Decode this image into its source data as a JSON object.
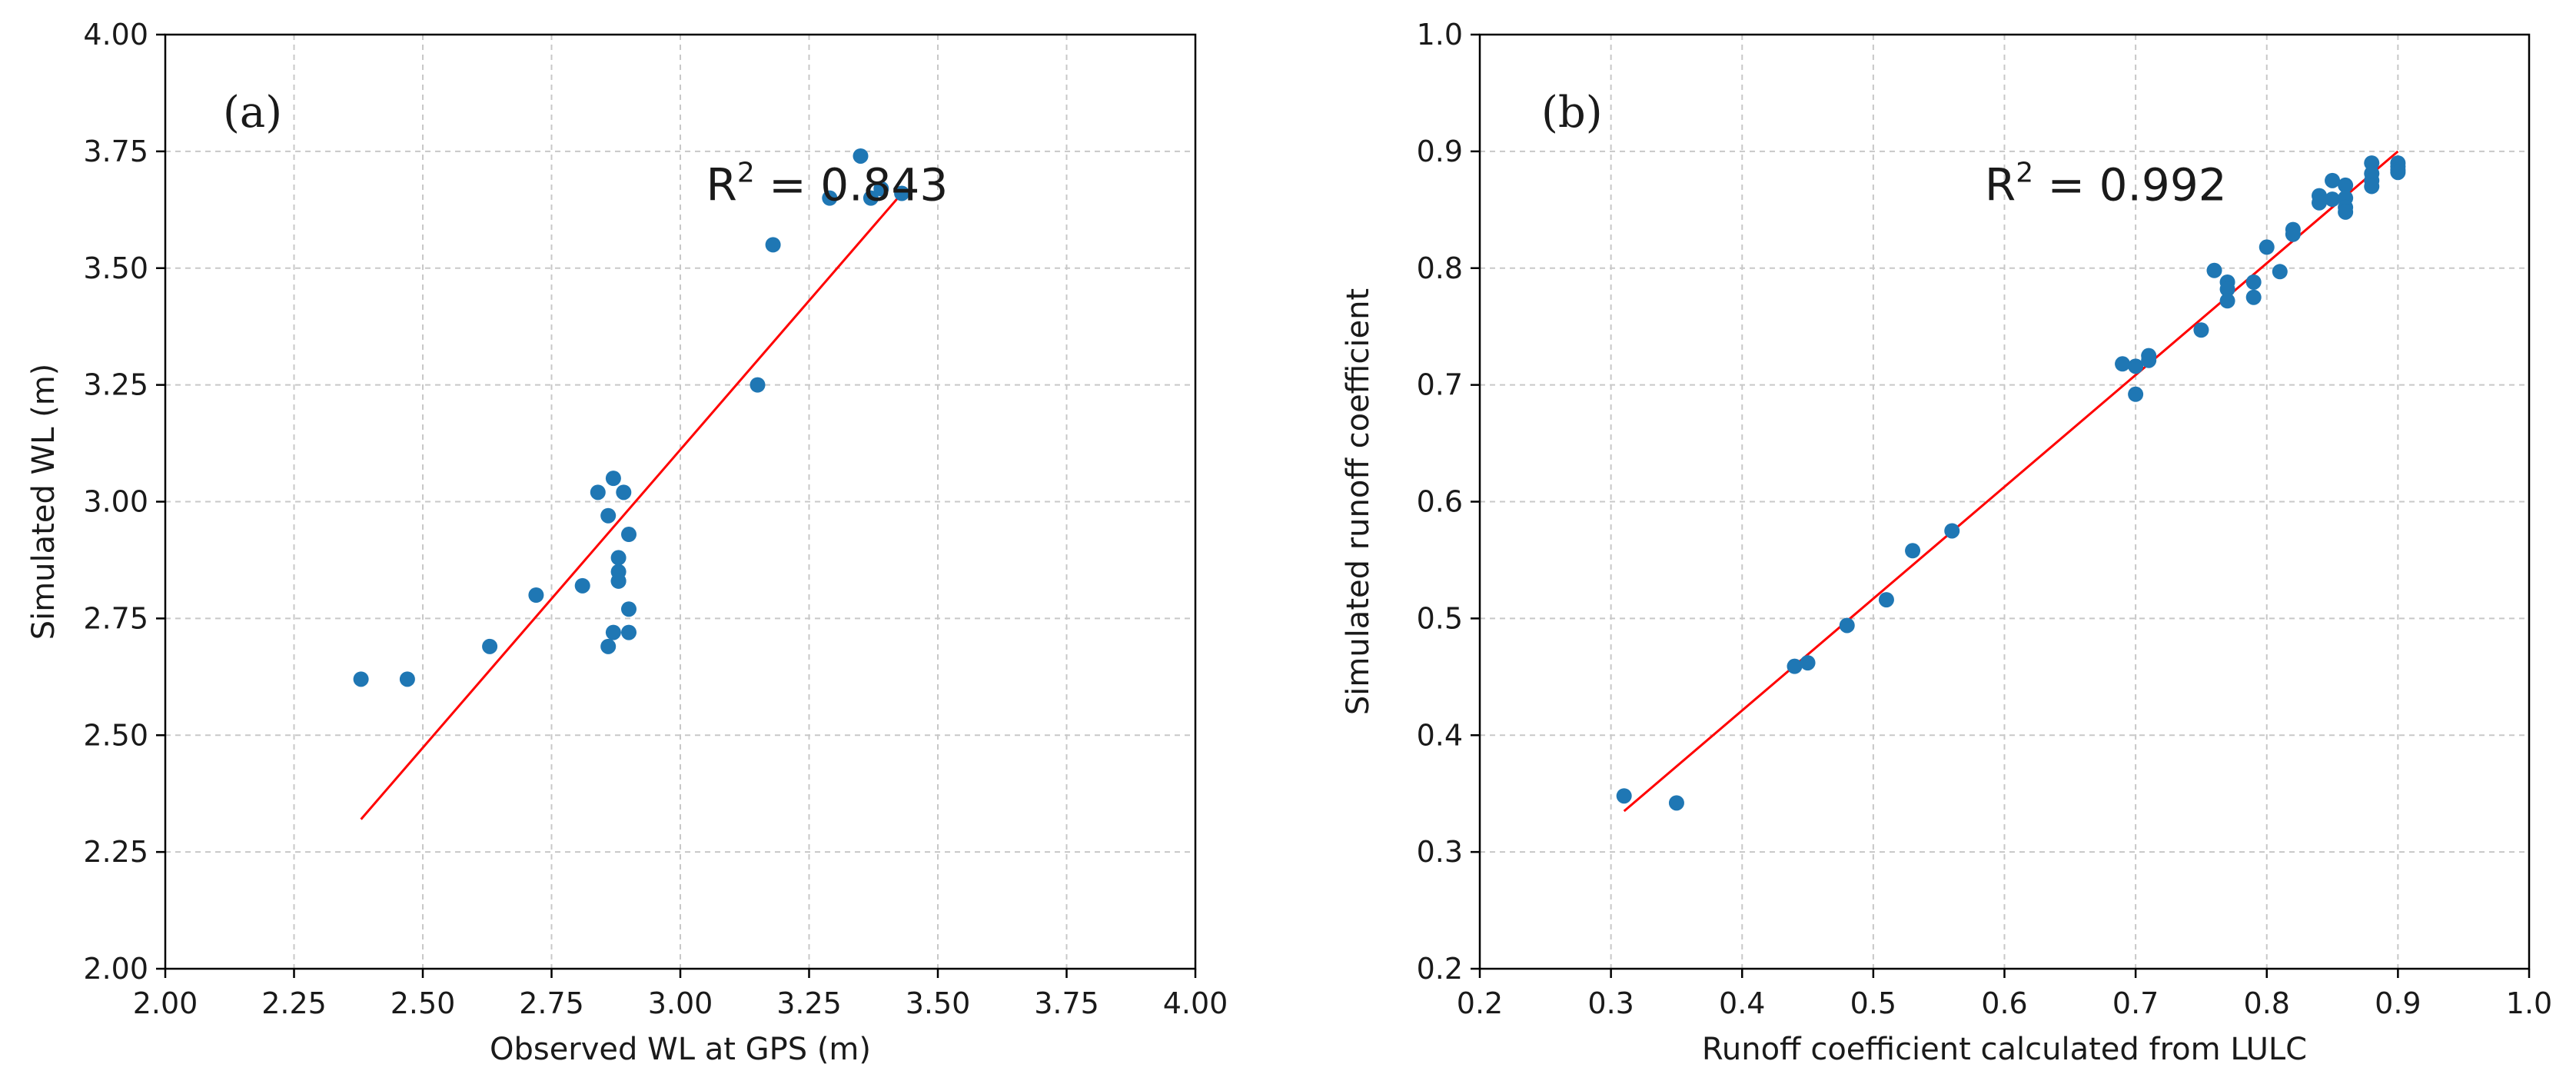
{
  "chart_data": [
    {
      "type": "scatter",
      "panel_label": "(a)",
      "xlabel": "Observed WL at GPS (m)",
      "ylabel": "Simulated WL (m)",
      "xlim": [
        2.0,
        4.0
      ],
      "ylim": [
        2.0,
        4.0
      ],
      "xticks": [
        2.0,
        2.25,
        2.5,
        2.75,
        3.0,
        3.25,
        3.5,
        3.75,
        4.0
      ],
      "yticks": [
        2.0,
        2.25,
        2.5,
        2.75,
        3.0,
        3.25,
        3.5,
        3.75,
        4.0
      ],
      "xtick_labels": [
        "2.00",
        "2.25",
        "2.50",
        "2.75",
        "3.00",
        "3.25",
        "3.50",
        "3.75",
        "4.00"
      ],
      "ytick_labels": [
        "2.00",
        "2.25",
        "2.50",
        "2.75",
        "3.00",
        "3.25",
        "3.50",
        "3.75",
        "4.00"
      ],
      "grid": true,
      "annotation": {
        "prefix": "R",
        "sup": "2",
        "suffix": " = 0.843",
        "x": 3.05,
        "y": 3.645
      },
      "point_color": "#1f77b4",
      "fit_color": "#ff0000",
      "fit_line": {
        "x": [
          2.38,
          3.43
        ],
        "y": [
          2.32,
          3.66
        ]
      },
      "x": [
        2.38,
        2.47,
        2.63,
        2.72,
        2.81,
        2.84,
        2.86,
        2.86,
        2.87,
        2.87,
        2.88,
        2.88,
        2.88,
        2.88,
        2.89,
        2.9,
        2.9,
        2.9,
        3.15,
        3.18,
        3.29,
        3.35,
        3.37,
        3.39,
        3.43
      ],
      "y": [
        2.62,
        2.62,
        2.69,
        2.8,
        2.82,
        3.02,
        2.97,
        2.69,
        2.72,
        3.05,
        2.83,
        2.85,
        2.88,
        2.83,
        3.02,
        2.93,
        2.77,
        2.72,
        3.25,
        3.55,
        3.65,
        3.74,
        3.65,
        3.67,
        3.66
      ]
    },
    {
      "type": "scatter",
      "panel_label": "(b)",
      "xlabel": "Runoff coefficient calculated from LULC",
      "ylabel": "Simulated runoff coefficient",
      "xlim": [
        0.2,
        1.0
      ],
      "ylim": [
        0.2,
        1.0
      ],
      "xticks": [
        0.2,
        0.3,
        0.4,
        0.5,
        0.6,
        0.7,
        0.8,
        0.9,
        1.0
      ],
      "yticks": [
        0.2,
        0.3,
        0.4,
        0.5,
        0.6,
        0.7,
        0.8,
        0.9,
        1.0
      ],
      "xtick_labels": [
        "0.2",
        "0.3",
        "0.4",
        "0.5",
        "0.6",
        "0.7",
        "0.8",
        "0.9",
        "1.0"
      ],
      "ytick_labels": [
        "0.2",
        "0.3",
        "0.4",
        "0.5",
        "0.6",
        "0.7",
        "0.8",
        "0.9",
        "1.0"
      ],
      "grid": true,
      "annotation": {
        "prefix": "R",
        "sup": "2",
        "suffix": " = 0.992",
        "x": 0.585,
        "y": 0.858
      },
      "point_color": "#1f77b4",
      "fit_color": "#ff0000",
      "fit_line": {
        "x": [
          0.31,
          0.9
        ],
        "y": [
          0.335,
          0.9
        ]
      },
      "x": [
        0.31,
        0.35,
        0.44,
        0.45,
        0.48,
        0.51,
        0.53,
        0.56,
        0.69,
        0.7,
        0.7,
        0.71,
        0.71,
        0.75,
        0.76,
        0.77,
        0.77,
        0.77,
        0.79,
        0.79,
        0.8,
        0.81,
        0.82,
        0.82,
        0.84,
        0.84,
        0.85,
        0.85,
        0.86,
        0.86,
        0.86,
        0.86,
        0.88,
        0.88,
        0.88,
        0.88,
        0.9,
        0.9,
        0.9,
        0.9
      ],
      "y": [
        0.348,
        0.342,
        0.459,
        0.462,
        0.494,
        0.516,
        0.558,
        0.575,
        0.718,
        0.716,
        0.692,
        0.725,
        0.721,
        0.747,
        0.798,
        0.788,
        0.782,
        0.772,
        0.788,
        0.775,
        0.818,
        0.797,
        0.833,
        0.829,
        0.862,
        0.856,
        0.875,
        0.859,
        0.871,
        0.86,
        0.852,
        0.848,
        0.89,
        0.881,
        0.875,
        0.87,
        0.89,
        0.887,
        0.884,
        0.882
      ]
    }
  ]
}
